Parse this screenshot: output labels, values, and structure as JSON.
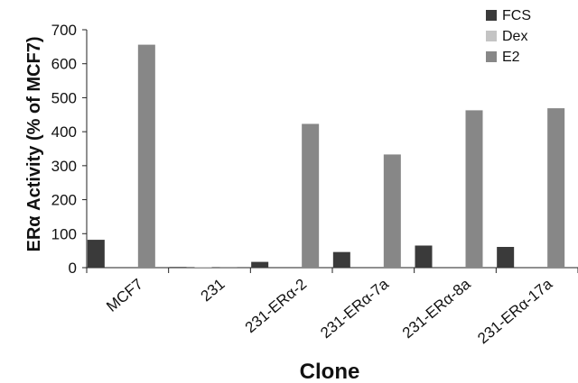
{
  "chart_data": {
    "type": "bar",
    "title": "",
    "xlabel": "Clone",
    "ylabel": "ERα Activity (% of MCF7)",
    "ylim": [
      0,
      700
    ],
    "yticks": [
      0,
      100,
      200,
      300,
      400,
      500,
      600,
      700
    ],
    "categories": [
      "MCF7",
      "231",
      "231-ERα-2",
      "231-ERα-7a",
      "231-ERα-8a",
      "231-ERα-17a"
    ],
    "series": [
      {
        "name": "FCS",
        "color": "#3a3a3a",
        "values": [
          82,
          2,
          17,
          46,
          65,
          61
        ]
      },
      {
        "name": "Dex",
        "color": "#c4c4c4",
        "values": [
          0,
          1,
          0,
          0,
          0,
          0
        ]
      },
      {
        "name": "E2",
        "color": "#878787",
        "values": [
          656,
          2,
          423,
          333,
          463,
          469
        ]
      }
    ],
    "legend": "top-right",
    "grid": false
  }
}
